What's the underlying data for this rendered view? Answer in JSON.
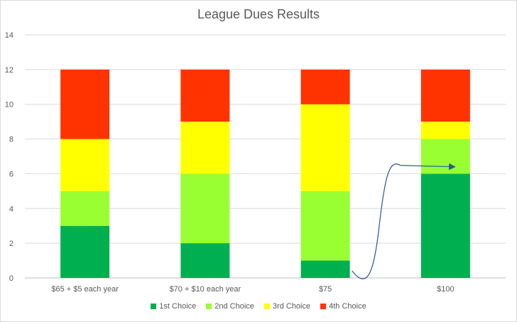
{
  "chart_data": {
    "type": "bar",
    "stacked": true,
    "title": "League Dues Results",
    "xlabel": "",
    "ylabel": "",
    "categories": [
      "$65 + $5 each year",
      "$70 + $10 each year",
      "$75",
      "$100"
    ],
    "series": [
      {
        "name": "1st Choice",
        "values": [
          3,
          2,
          1,
          6
        ],
        "color": "#00b050"
      },
      {
        "name": "2nd Choice",
        "values": [
          2,
          4,
          4,
          2
        ],
        "color": "#99ff33"
      },
      {
        "name": "3rd Choice",
        "values": [
          3,
          3,
          5,
          1
        ],
        "color": "#ffff00"
      },
      {
        "name": "4th Choice",
        "values": [
          4,
          3,
          2,
          3
        ],
        "color": "#ff3300"
      }
    ],
    "ylim": [
      0,
      14
    ],
    "yticks": [
      0,
      2,
      4,
      6,
      8,
      10,
      12,
      14
    ],
    "grid": true,
    "legend_position": "bottom",
    "annotation": {
      "type": "curved-arrow",
      "color": "#2f5597",
      "from_category": "$75",
      "to_category": "$100",
      "to_value": 6.4
    }
  }
}
